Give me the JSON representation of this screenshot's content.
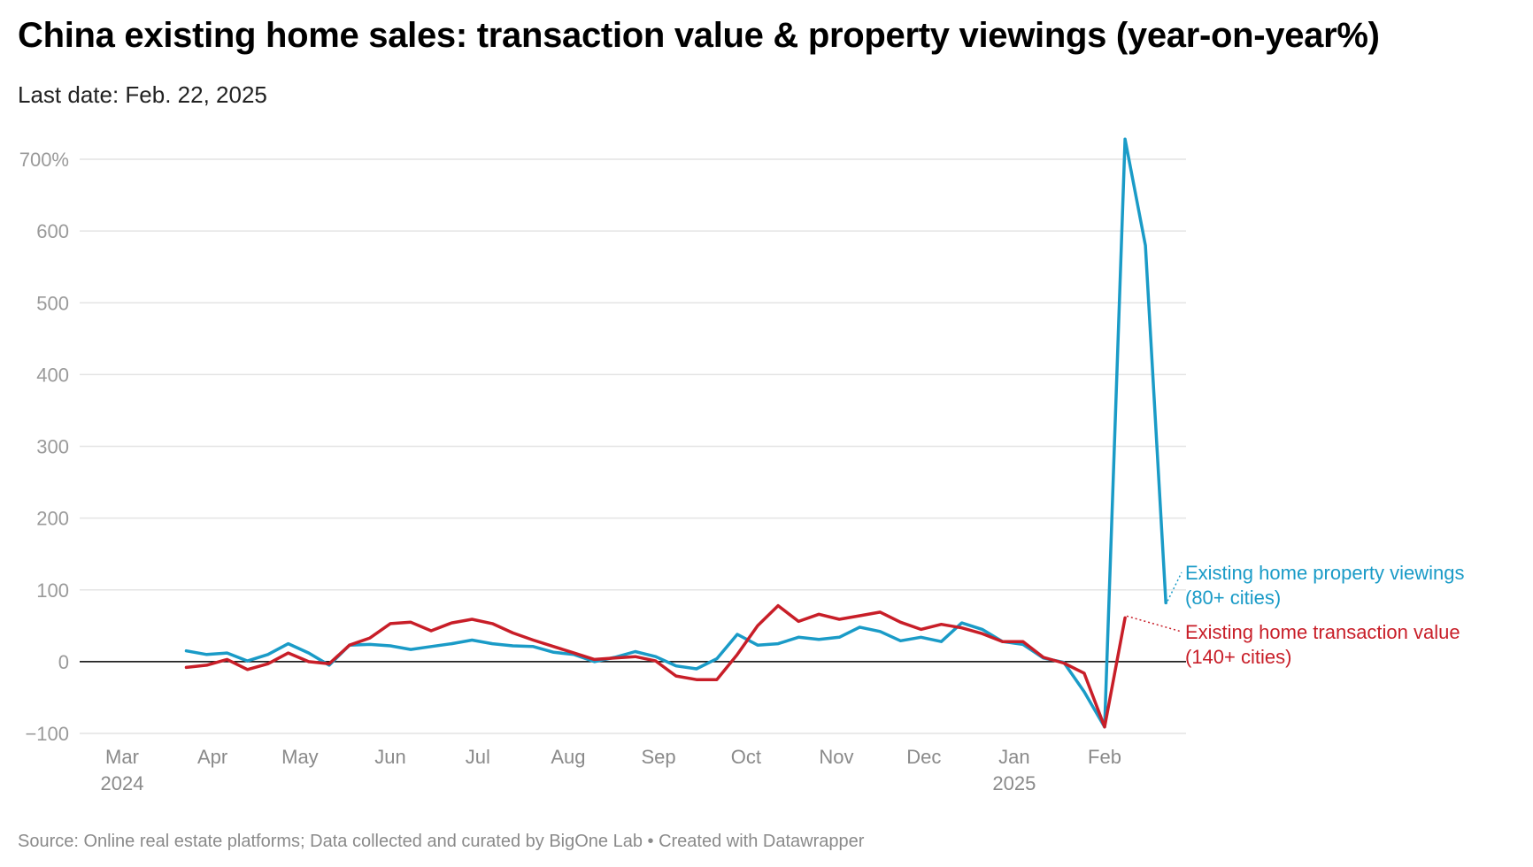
{
  "header": {
    "title": "China existing home sales: transaction value & property viewings (year-on-year%)",
    "subtitle": "Last date: Feb. 22, 2025"
  },
  "footer": {
    "source": "Source: Online real estate platforms; Data collected and curated by BigOne Lab • Created with Datawrapper"
  },
  "colors": {
    "viewings": "#1a9bc7",
    "transaction": "#c81e28",
    "grid": "#e4e4e4",
    "zero": "#000000"
  },
  "chart_data": {
    "type": "line",
    "title": "China existing home sales: transaction value & property viewings (year-on-year%)",
    "subtitle": "Last date: Feb. 22, 2025",
    "ylim": [
      -100,
      700
    ],
    "y_ticks": [
      -100,
      0,
      100,
      200,
      300,
      400,
      500,
      600,
      700
    ],
    "y_tick_labels": [
      "−100",
      "0",
      "100",
      "200",
      "300",
      "400",
      "500",
      "600",
      "700%"
    ],
    "x_ticks": [
      {
        "date": "2024-03-01",
        "label": "Mar",
        "sub": "2024"
      },
      {
        "date": "2024-04-01",
        "label": "Apr",
        "sub": ""
      },
      {
        "date": "2024-05-01",
        "label": "May",
        "sub": ""
      },
      {
        "date": "2024-06-01",
        "label": "Jun",
        "sub": ""
      },
      {
        "date": "2024-07-01",
        "label": "Jul",
        "sub": ""
      },
      {
        "date": "2024-08-01",
        "label": "Aug",
        "sub": ""
      },
      {
        "date": "2024-09-01",
        "label": "Sep",
        "sub": ""
      },
      {
        "date": "2024-10-01",
        "label": "Oct",
        "sub": ""
      },
      {
        "date": "2024-11-01",
        "label": "Nov",
        "sub": ""
      },
      {
        "date": "2024-12-01",
        "label": "Dec",
        "sub": ""
      },
      {
        "date": "2025-01-01",
        "label": "Jan",
        "sub": "2025"
      },
      {
        "date": "2025-02-01",
        "label": "Feb",
        "sub": ""
      }
    ],
    "grid": true,
    "x": [
      "2024-03-23",
      "2024-03-30",
      "2024-04-06",
      "2024-04-13",
      "2024-04-20",
      "2024-04-27",
      "2024-05-04",
      "2024-05-11",
      "2024-05-18",
      "2024-05-25",
      "2024-06-01",
      "2024-06-08",
      "2024-06-15",
      "2024-06-22",
      "2024-06-29",
      "2024-07-06",
      "2024-07-13",
      "2024-07-20",
      "2024-07-27",
      "2024-08-03",
      "2024-08-10",
      "2024-08-17",
      "2024-08-24",
      "2024-08-31",
      "2024-09-07",
      "2024-09-14",
      "2024-09-21",
      "2024-09-28",
      "2024-10-05",
      "2024-10-12",
      "2024-10-19",
      "2024-10-26",
      "2024-11-02",
      "2024-11-09",
      "2024-11-16",
      "2024-11-23",
      "2024-11-30",
      "2024-12-07",
      "2024-12-14",
      "2024-12-21",
      "2024-12-28",
      "2025-01-04",
      "2025-01-11",
      "2025-01-18",
      "2025-01-25",
      "2025-02-01",
      "2025-02-08",
      "2025-02-15",
      "2025-02-22"
    ],
    "series": [
      {
        "name": "Existing home property viewings",
        "label_line1": "Existing home property viewings",
        "label_line2": "(80+ cities)",
        "values": [
          15,
          10,
          12,
          1,
          10,
          25,
          12,
          -5,
          23,
          24,
          22,
          17,
          21,
          25,
          30,
          25,
          22,
          21,
          13,
          10,
          0,
          6,
          14,
          7,
          -6,
          -10,
          4,
          38,
          23,
          25,
          34,
          31,
          34,
          48,
          42,
          29,
          34,
          28,
          54,
          45,
          28,
          24,
          5,
          -1,
          -42,
          -91,
          728,
          580,
          82
        ]
      },
      {
        "name": "Existing home transaction value",
        "label_line1": "Existing home transaction value",
        "label_line2": "(140+ cities)",
        "values": [
          -8,
          -5,
          3,
          -11,
          -3,
          12,
          0,
          -3,
          23,
          33,
          53,
          55,
          43,
          54,
          59,
          53,
          40,
          30,
          21,
          12,
          3,
          5,
          7,
          1,
          -20,
          -25,
          -25,
          10,
          50,
          78,
          56,
          66,
          59,
          64,
          69,
          55,
          45,
          52,
          47,
          39,
          28,
          28,
          6,
          -2,
          -16,
          -91,
          61,
          null,
          null
        ]
      }
    ]
  }
}
